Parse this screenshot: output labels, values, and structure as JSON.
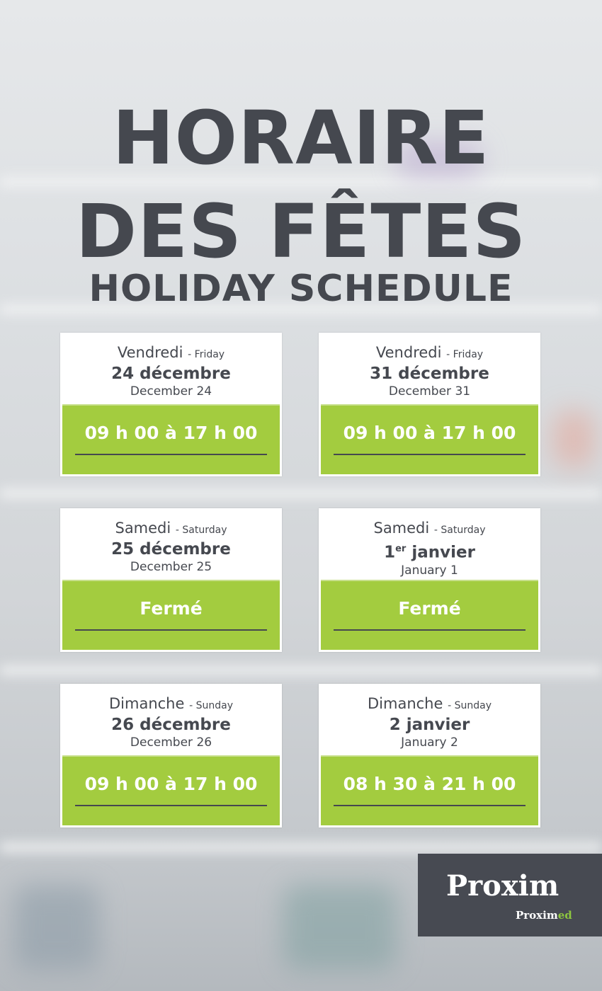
{
  "title": {
    "line1": "HORAIRE",
    "line2": "DES FÊTES",
    "line3": "HOLIDAY SCHEDULE"
  },
  "colors": {
    "accent": "#a3cc3f",
    "text": "#45484f",
    "logo_bg": "#474a52"
  },
  "cards": [
    {
      "day_fr": "Vendredi",
      "day_en": "- Friday",
      "date_fr": "24 décembre",
      "date_en": "December 24",
      "hours": "09 h 00 à 17 h 00"
    },
    {
      "day_fr": "Vendredi",
      "day_en": "- Friday",
      "date_fr": "31 décembre",
      "date_en": "December 31",
      "hours": "09 h 00 à 17 h 00"
    },
    {
      "day_fr": "Samedi",
      "day_en": "- Saturday",
      "date_fr": "25 décembre",
      "date_en": "December 25",
      "hours": "Fermé"
    },
    {
      "day_fr": "Samedi",
      "day_en": "- Saturday",
      "date_fr_num": "1",
      "date_fr_sup": "er",
      "date_fr_rest": " janvier",
      "date_en": "January 1",
      "hours": "Fermé"
    },
    {
      "day_fr": "Dimanche",
      "day_en": "- Sunday",
      "date_fr": "26 décembre",
      "date_en": "December 26",
      "hours": "09 h 00 à 17 h 00"
    },
    {
      "day_fr": "Dimanche",
      "day_en": "- Sunday",
      "date_fr": "2 janvier",
      "date_en": "January 2",
      "hours": "08 h 30 à 21 h 00"
    }
  ],
  "logo": {
    "main": "Proxim",
    "sub_a": "Proxim",
    "sub_b": "ed"
  }
}
